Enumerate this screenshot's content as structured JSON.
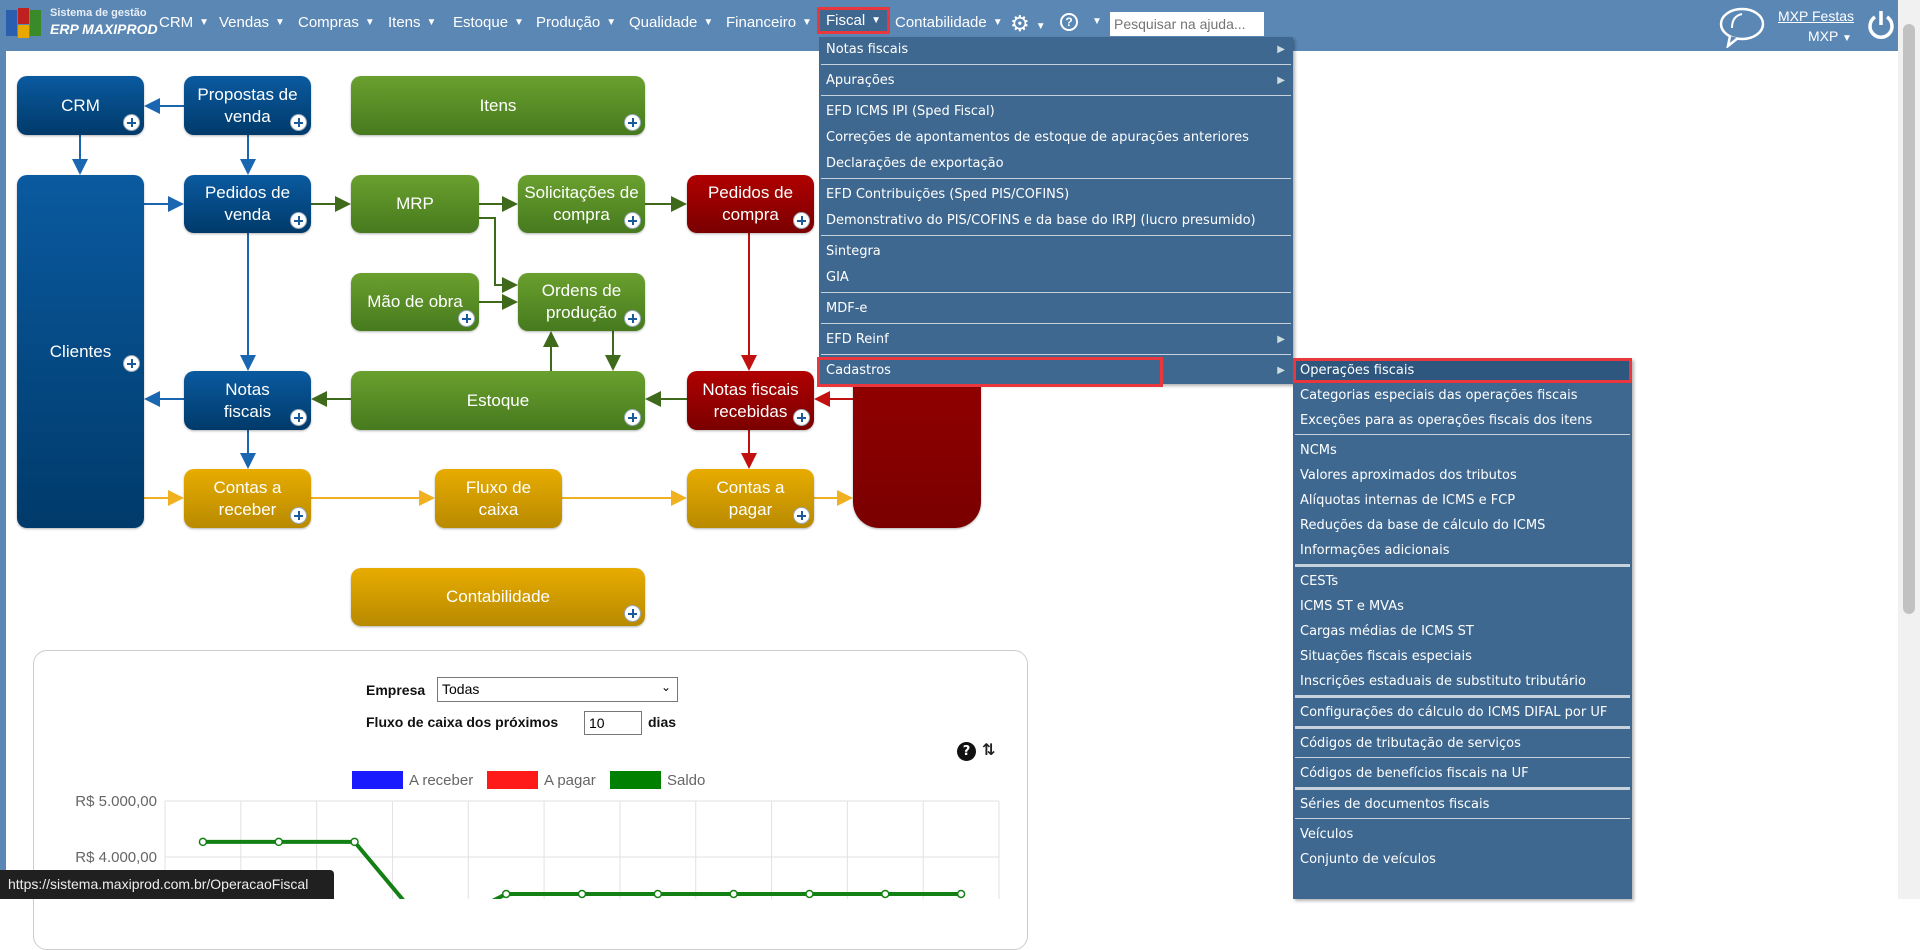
{
  "app": {
    "logo_line1": "Sistema de gestão",
    "logo_line2": "ERP MAXIPROD"
  },
  "nav": {
    "items": [
      "CRM",
      "Vendas",
      "Compras",
      "Itens",
      "Estoque",
      "Produção",
      "Qualidade",
      "Financeiro",
      "Fiscal",
      "Contabilidade"
    ],
    "active": "Fiscal",
    "search_placeholder": "Pesquisar na ajuda...",
    "user_company": "MXP Festas",
    "user_name": "MXP"
  },
  "icons": {
    "settings": "gear-icon",
    "help": "question-circle-icon",
    "chat": "speech-bubble-icon",
    "power": "power-icon",
    "add": "plus-circle-icon",
    "refresh": "refresh-icon"
  },
  "colors": {
    "topbar": "#5b87b5",
    "menu": "#3f6890",
    "highlight": "#e8383d",
    "blue": "#0a5aa0",
    "green": "#5a8f27",
    "red": "#a00000",
    "yellow": "#d9a000"
  },
  "diagram": {
    "crm": "CRM",
    "propostas": "Propostas de\nvenda",
    "itens": "Itens",
    "clientes": "Clientes",
    "pedidos_venda": "Pedidos de\nvenda",
    "mrp": "MRP",
    "solicitacoes": "Solicitações de\ncompra",
    "pedidos_compra": "Pedidos de\ncompra",
    "mao_de_obra": "Mão de obra",
    "ordens": "Ordens de\nprodução",
    "notas_fiscais": "Notas\nfiscais",
    "estoque": "Estoque",
    "nf_recebidas": "Notas fiscais\nrecebidas",
    "contas_receber": "Contas a\nreceber",
    "fluxo_caixa": "Fluxo de\ncaixa",
    "contas_pagar": "Contas a\npagar",
    "contabilidade": "Contabilidade"
  },
  "cashflow": {
    "empresa_label": "Empresa",
    "empresa_value": "Todas",
    "days_label": "Fluxo de caixa dos próximos",
    "days_value": "10",
    "days_unit": "dias"
  },
  "chart_data": {
    "type": "line",
    "legend": [
      "A receber",
      "A pagar",
      "Saldo"
    ],
    "legend_colors": [
      "#1a1aff",
      "#ff1a1a",
      "#008000"
    ],
    "legend_placement": "top",
    "y_ticks": [
      "R$ 5.000,00",
      "R$ 4.000,00"
    ],
    "y_tick_values": [
      5000,
      4000
    ],
    "grid": true,
    "series": [
      {
        "name": "Saldo",
        "color": "#138013",
        "values": [
          4270,
          4270,
          4270,
          2650,
          3340,
          3340,
          3340,
          3340,
          3340,
          3340,
          3340
        ]
      }
    ]
  },
  "fiscal_menu": {
    "groups": [
      [
        {
          "label": "Notas fiscais",
          "sub": true
        }
      ],
      [
        {
          "label": "Apurações",
          "sub": true
        }
      ],
      [
        {
          "label": "EFD ICMS IPI (Sped Fiscal)"
        },
        {
          "label": "Correções de apontamentos de estoque de apurações anteriores"
        },
        {
          "label": "Declarações de exportação"
        }
      ],
      [
        {
          "label": "EFD Contribuições (Sped PIS/COFINS)"
        },
        {
          "label": "Demonstrativo do PIS/COFINS e da base do IRPJ (lucro presumido)"
        }
      ],
      [
        {
          "label": "Sintegra"
        },
        {
          "label": "GIA"
        }
      ],
      [
        {
          "label": "MDF-e"
        }
      ],
      [
        {
          "label": "EFD Reinf",
          "sub": true
        }
      ],
      [
        {
          "label": "Cadastros",
          "sub": true
        }
      ]
    ]
  },
  "cadastros_menu": {
    "groups": [
      [
        "Operações fiscais",
        "Categorias especiais das operações fiscais",
        "Exceções para as operações fiscais dos itens"
      ],
      [
        "NCMs",
        "Valores aproximados dos tributos",
        "Alíquotas internas de ICMS e FCP",
        "Reduções da base de cálculo do ICMS",
        "Informações adicionais"
      ],
      [
        "CESTs",
        "ICMS ST e MVAs",
        "Cargas médias de ICMS ST",
        "Situações fiscais especiais",
        "Inscrições estaduais de substituto tributário"
      ],
      [
        "Configurações do cálculo do ICMS DIFAL por UF"
      ],
      [
        "Códigos de tributação de serviços"
      ],
      [
        "Códigos de benefícios fiscais na UF"
      ],
      [
        "Séries de documentos fiscais"
      ],
      [
        "Veículos",
        "Conjunto de veículos"
      ]
    ]
  },
  "status_url": "https://sistema.maxiprod.com.br/OperacaoFiscal"
}
